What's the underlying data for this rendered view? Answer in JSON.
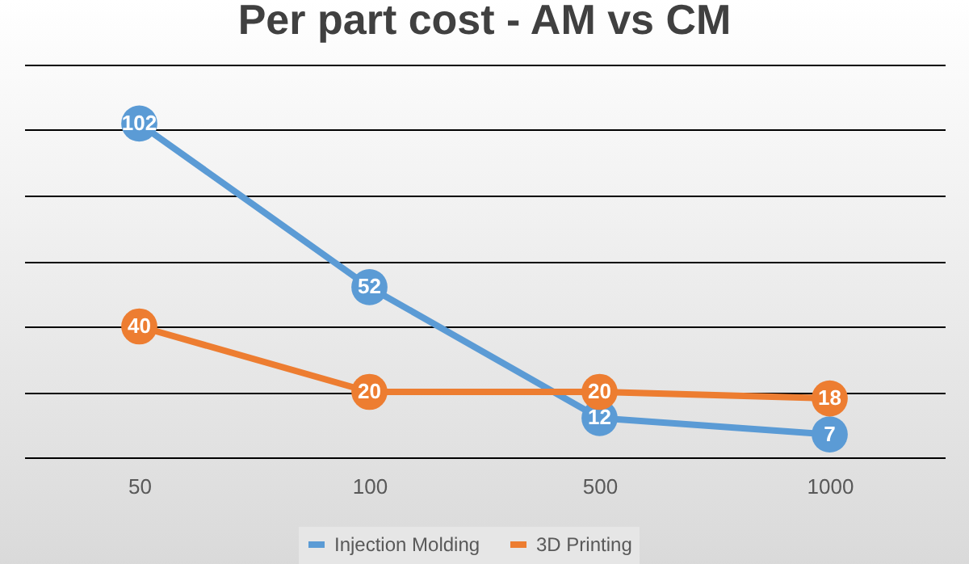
{
  "chart_data": {
    "type": "line",
    "title": "Per part cost - AM vs CM",
    "categories": [
      "50",
      "100",
      "500",
      "1000"
    ],
    "series": [
      {
        "name": "Injection Molding",
        "color": "#5b9bd5",
        "values": [
          102,
          52,
          12,
          7
        ]
      },
      {
        "name": "3D Printing",
        "color": "#ed7d31",
        "values": [
          40,
          20,
          20,
          18
        ]
      }
    ],
    "ylim": [
      0,
      120
    ],
    "yticks": [
      {
        "value": 0,
        "label": null
      },
      {
        "value": 20,
        "label": null
      },
      {
        "value": 40,
        "label": null
      },
      {
        "value": 60,
        "label": null
      },
      {
        "value": 80,
        "label": null
      },
      {
        "value": 100,
        "label": null
      },
      {
        "value": 120,
        "label": null
      }
    ],
    "tick_labels": "x",
    "grid": "y",
    "legend": "bottom",
    "marker": "circle",
    "line_style": "solid",
    "data_labels": true
  }
}
